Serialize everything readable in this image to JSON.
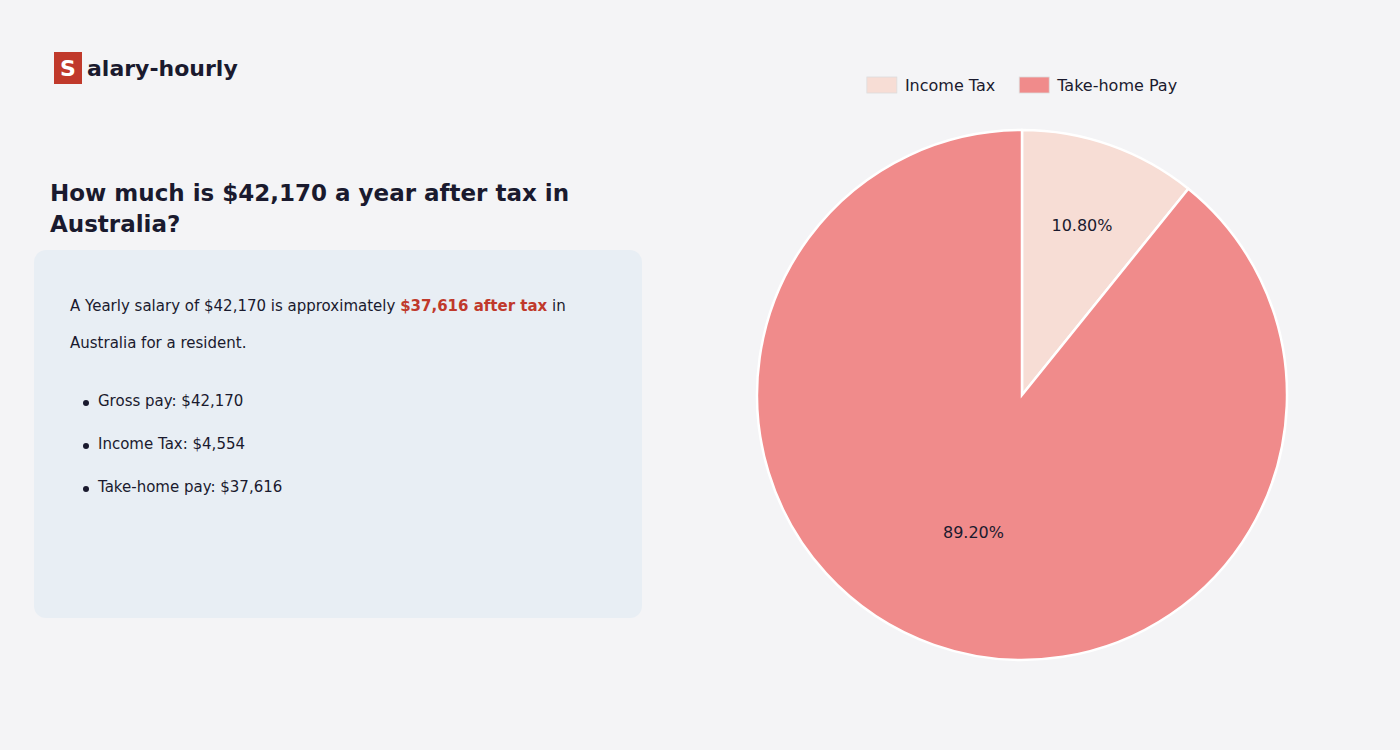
{
  "chart_data": {
    "type": "pie",
    "title": "How much is $42,170 a year after tax in\nAustralia?",
    "annotations": [
      "S",
      "alary-hourly",
      "A Yearly salary of $42,170 is approximately ",
      "$37,616 after tax",
      " in",
      "Australia for a resident.",
      "Gross pay: $42,170",
      "Income Tax: $4,554",
      "Take-home pay: $37,616"
    ],
    "categories": [
      "Income Tax",
      "Take-home Pay"
    ],
    "values": [
      10.8,
      89.2
    ],
    "value_labels": [
      "10.80%",
      "89.20%"
    ],
    "colors": [
      "#f7ddd5",
      "#f08b8b"
    ],
    "data_labels": true,
    "legend": "top"
  }
}
